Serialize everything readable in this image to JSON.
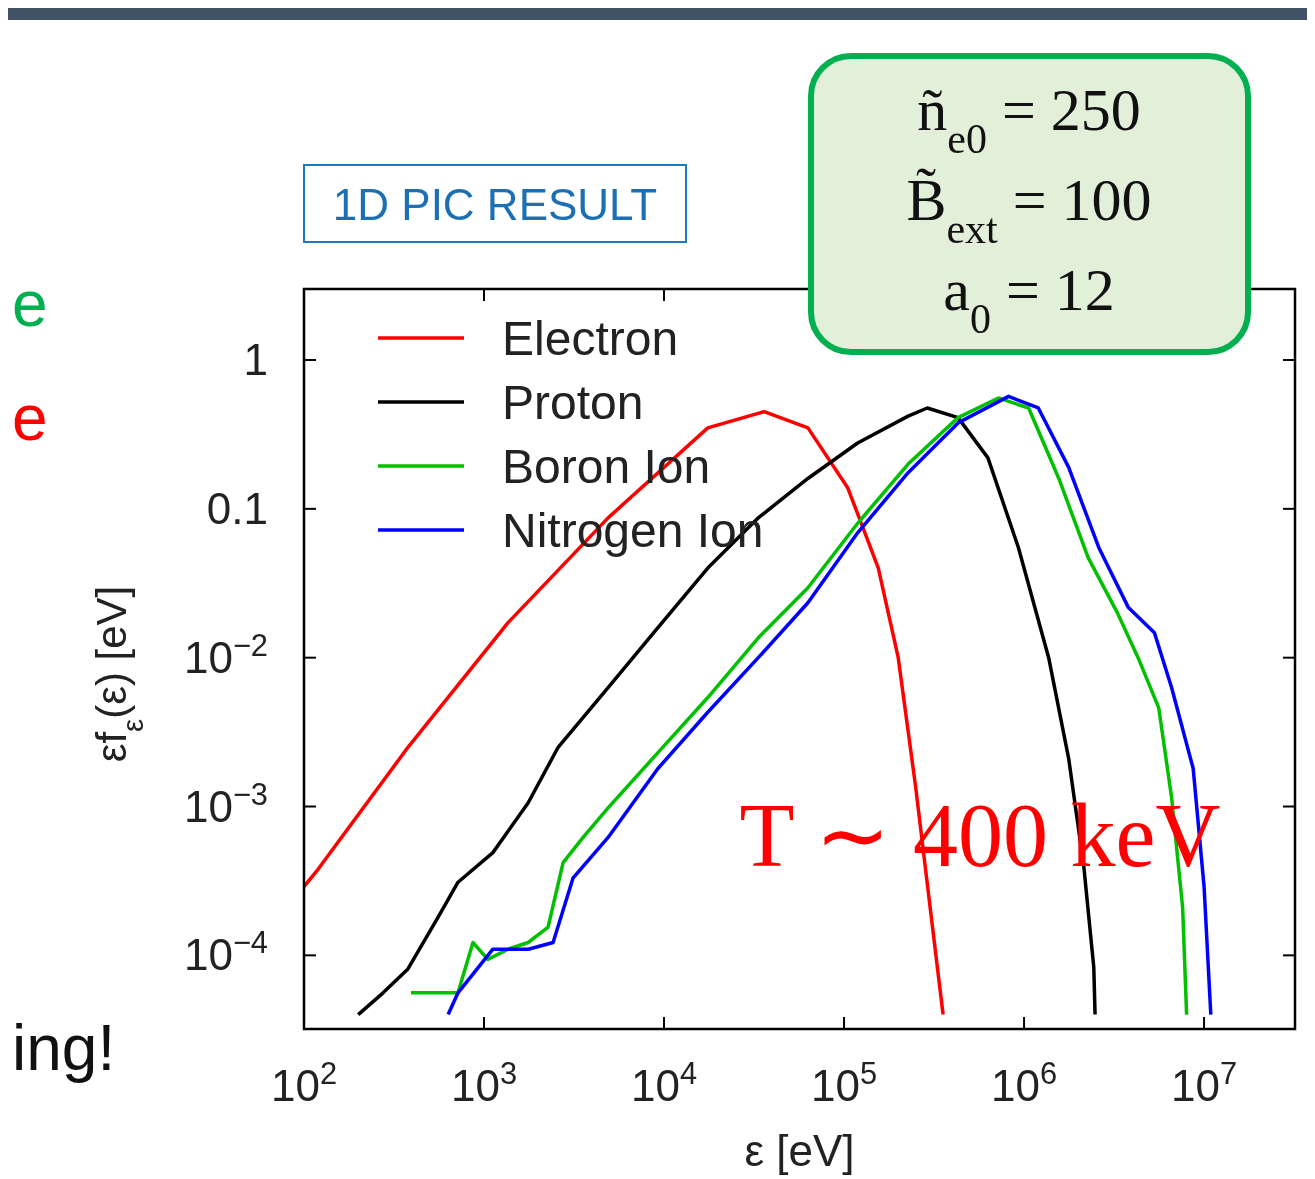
{
  "chart_data": {
    "type": "line",
    "xlabel": "ε [eV]",
    "ylabel": "εf$_{ε}$(ε) [eV]",
    "log": "xy",
    "xlim": [
      100,
      32000000
    ],
    "ylim": [
      3.2e-05,
      3
    ],
    "xticks": [
      {
        "value": 100,
        "label": "10$^{2}$"
      },
      {
        "value": 1000,
        "label": "10$^{3}$"
      },
      {
        "value": 10000,
        "label": "10$^{4}$"
      },
      {
        "value": 100000,
        "label": "10$^{5}$"
      },
      {
        "value": 1000000,
        "label": "10$^{6}$"
      },
      {
        "value": 10000000,
        "label": "10$^{7}$"
      }
    ],
    "yticks": [
      {
        "value": 0.0001,
        "label": "10$^{−4}$"
      },
      {
        "value": 0.001,
        "label": "10$^{−3}$"
      },
      {
        "value": 0.01,
        "label": "10$^{−2}$"
      },
      0.1,
      1
    ],
    "grid": false,
    "legend": "top left",
    "line_style": "solid",
    "marker": "none",
    "annotations": [
      "1D PIC RESULT",
      "ñ$_{e0}$ = 250",
      "B̃$_{ext}$ = 100",
      "a$_{0}$ = 12",
      "T ∼ 400 keV",
      "e",
      "e",
      "ing!"
    ],
    "series": [
      {
        "name": "Electron",
        "color": "#ff0000",
        "x": [
          100,
          120,
          378,
          1360,
          4890,
          17500,
          36000,
          63000,
          105000,
          155000,
          200000,
          250000,
          310000,
          355000
        ],
        "values": [
          0.00029,
          0.00038,
          0.0025,
          0.0172,
          0.087,
          0.35,
          0.45,
          0.35,
          0.138,
          0.04,
          0.01,
          0.00135,
          0.000155,
          4e-05
        ]
      },
      {
        "name": "Proton",
        "color": "#000000",
        "x": [
          200,
          275,
          378,
          555,
          717,
          1120,
          1760,
          2580,
          4890,
          9250,
          17500,
          33400,
          63000,
          119000,
          227000,
          290000,
          430000,
          630000,
          930000,
          1370000,
          1770000,
          2150000,
          2440000,
          2480000
        ],
        "values": [
          4e-05,
          5.6e-05,
          8.1e-05,
          0.00018,
          0.00031,
          0.00049,
          0.00106,
          0.0025,
          0.0063,
          0.0159,
          0.04,
          0.087,
          0.16,
          0.277,
          0.42,
          0.476,
          0.41,
          0.22,
          0.055,
          0.01,
          0.0021,
          0.00039,
          8.3e-05,
          4e-05
        ]
      },
      {
        "name": "Boron Ion",
        "color": "#00c000",
        "x": [
          393,
          717,
          868,
          1050,
          1360,
          1760,
          2270,
          2750,
          3550,
          4890,
          9250,
          17500,
          33400,
          63000,
          119000,
          227000,
          430000,
          720000,
          1060000,
          1560000,
          2270000,
          3300000,
          4300000,
          5600000,
          6600000,
          7600000,
          8000000
        ],
        "values": [
          5.6e-05,
          5.6e-05,
          0.000122,
          9.4e-05,
          0.00011,
          0.000122,
          0.000155,
          0.00042,
          0.00062,
          0.00098,
          0.0023,
          0.0054,
          0.0136,
          0.0295,
          0.08,
          0.2,
          0.41,
          0.556,
          0.476,
          0.16,
          0.047,
          0.02,
          0.01,
          0.0046,
          0.00115,
          0.00021,
          4e-05
        ]
      },
      {
        "name": "Nitrogen Ion",
        "color": "#0000ff",
        "x": [
          632,
          717,
          1120,
          1760,
          2420,
          3120,
          4890,
          9250,
          17500,
          33400,
          63000,
          119000,
          227000,
          430000,
          820000,
          1200000,
          1770000,
          2600000,
          3800000,
          5300000,
          6600000,
          8700000,
          10000000,
          10900000
        ],
        "values": [
          4e-05,
          5.6e-05,
          0.00011,
          0.00011,
          0.000122,
          0.00033,
          0.00062,
          0.0018,
          0.0043,
          0.01,
          0.0234,
          0.069,
          0.175,
          0.378,
          0.57,
          0.476,
          0.19,
          0.055,
          0.0217,
          0.0147,
          0.0063,
          0.0018,
          0.00029,
          4e-05
        ]
      }
    ]
  }
}
